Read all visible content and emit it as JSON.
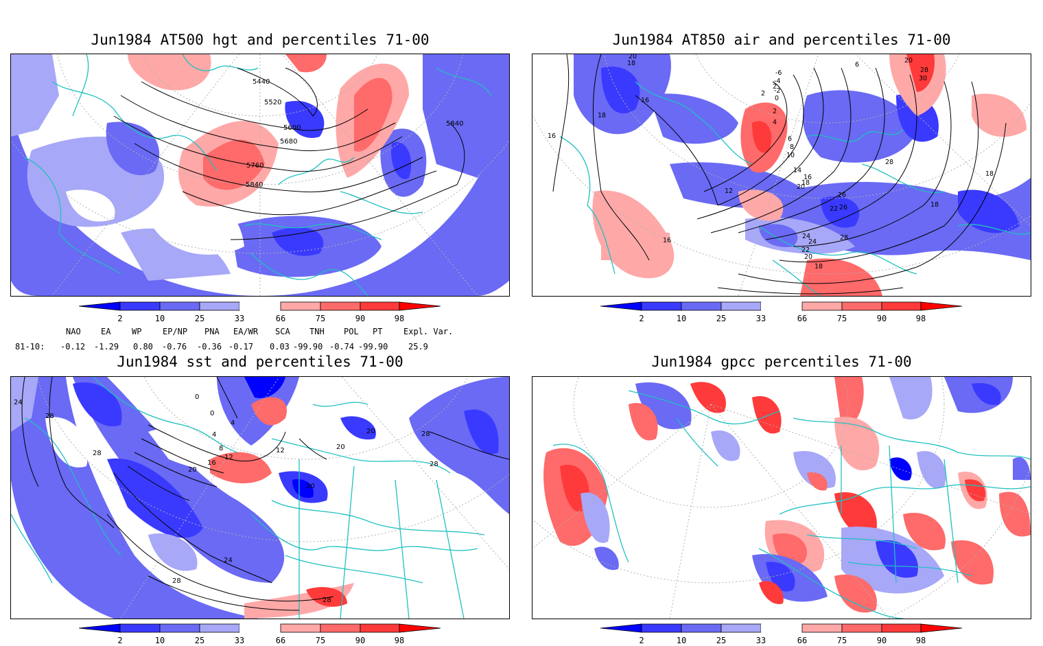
{
  "panels": [
    {
      "title": "Jun1984 AT500 hgt and percentiles 71-00",
      "contour_labels": [
        "5440",
        "5520",
        "5600",
        "5680",
        "5760",
        "5840",
        "5840"
      ]
    },
    {
      "title": "Jun1984 AT850 air and percentiles 71-00",
      "contour_labels": [
        "20",
        "18",
        "16",
        "18",
        "16",
        "2",
        "2",
        "-2",
        "-4",
        "-6",
        "0",
        "2",
        "4",
        "6",
        "8",
        "10",
        "12",
        "14",
        "16",
        "18",
        "20",
        "22",
        "24",
        "26",
        "28",
        "28",
        "26",
        "24",
        "22",
        "20",
        "18",
        "16",
        "18",
        "18",
        "6",
        "30",
        "28",
        "20"
      ]
    },
    {
      "title": "Jun1984 sst and percentiles 71-00",
      "contour_labels": [
        "24",
        "28",
        "28",
        "0",
        "0",
        "4",
        "4",
        "8",
        "12",
        "16",
        "20",
        "20",
        "24",
        "28",
        "28",
        "20",
        "20",
        "12",
        "28",
        "28"
      ]
    },
    {
      "title": "Jun1984 gpcc percentiles 71-00",
      "contour_labels": []
    }
  ],
  "colorbar": {
    "ticks": [
      "2",
      "10",
      "25",
      "33",
      "66",
      "75",
      "90",
      "98"
    ],
    "colors": {
      "lt2": "#0000ff",
      "2_10": "#3a3aff",
      "10_25": "#6a6af5",
      "25_33": "#a8a8f8",
      "33_66": "#ffffff",
      "66_75": "#ffa8a8",
      "75_90": "#ff6a6a",
      "90_98": "#ff3a3a",
      "gt98": "#ff0000"
    }
  },
  "indices": {
    "headers": [
      "NAO",
      "EA",
      "WP",
      "EP/NP",
      "PNA",
      "EA/WR",
      "SCA",
      "TNH",
      "POL",
      "PT",
      "Expl. Var."
    ],
    "row_label": "81-10:",
    "values": [
      "-0.12",
      "-1.29",
      "0.80",
      "-0.76",
      "-0.36",
      "-0.17",
      "0.03",
      "-99.90",
      "-0.74",
      "-99.90",
      "25.9"
    ]
  },
  "map_colors": {
    "coastline": "#20c0c0",
    "contour": "#000000",
    "grid": "#b0b0b0"
  }
}
